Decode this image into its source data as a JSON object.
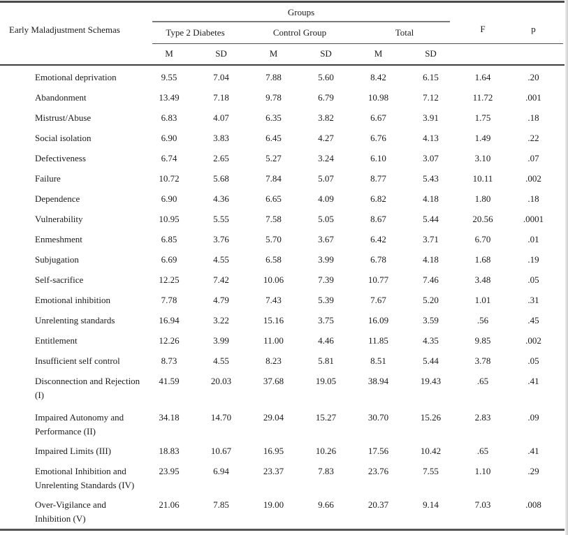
{
  "table": {
    "row_header": "Early Maladjustment Schemas",
    "group_header": "Groups",
    "group_columns": [
      "Type 2 Diabetes",
      "Control Group",
      "Total"
    ],
    "stat_headers": [
      "M",
      "SD",
      "M",
      "SD",
      "M",
      "SD"
    ],
    "f_label": "F",
    "p_label": "p",
    "rows": [
      {
        "name": "Emotional deprivation",
        "values": [
          "9.55",
          "7.04",
          "7.88",
          "5.60",
          "8.42",
          "6.15",
          "1.64",
          ".20"
        ]
      },
      {
        "name": "Abandonment",
        "values": [
          "13.49",
          "7.18",
          "9.78",
          "6.79",
          "10.98",
          "7.12",
          "11.72",
          ".001"
        ]
      },
      {
        "name": "Mistrust/Abuse",
        "values": [
          "6.83",
          "4.07",
          "6.35",
          "3.82",
          "6.67",
          "3.91",
          "1.75",
          ".18"
        ]
      },
      {
        "name": "Social isolation",
        "values": [
          "6.90",
          "3.83",
          "6.45",
          "4.27",
          "6.76",
          "4.13",
          "1.49",
          ".22"
        ]
      },
      {
        "name": "Defectiveness",
        "values": [
          "6.74",
          "2.65",
          "5.27",
          "3.24",
          "6.10",
          "3.07",
          "3.10",
          ".07"
        ]
      },
      {
        "name": "Failure",
        "values": [
          "10.72",
          "5.68",
          "7.84",
          "5.07",
          "8.77",
          "5.43",
          "10.11",
          ".002"
        ]
      },
      {
        "name": "Dependence",
        "values": [
          "6.90",
          "4.36",
          "6.65",
          "4.09",
          "6.82",
          "4.18",
          "1.80",
          ".18"
        ]
      },
      {
        "name": "Vulnerability",
        "values": [
          "10.95",
          "5.55",
          "7.58",
          "5.05",
          "8.67",
          "5.44",
          "20.56",
          ".0001"
        ]
      },
      {
        "name": "Enmeshment",
        "values": [
          "6.85",
          "3.76",
          "5.70",
          "3.67",
          "6.42",
          "3.71",
          "6.70",
          ".01"
        ]
      },
      {
        "name": "Subjugation",
        "values": [
          "6.69",
          "4.55",
          "6.58",
          "3.99",
          "6.78",
          "4.18",
          "1.68",
          ".19"
        ]
      },
      {
        "name": "Self-sacrifice",
        "values": [
          "12.25",
          "7.42",
          "10.06",
          "7.39",
          "10.77",
          "7.46",
          "3.48",
          ".05"
        ]
      },
      {
        "name": "Emotional inhibition",
        "values": [
          "7.78",
          "4.79",
          "7.43",
          "5.39",
          "7.67",
          "5.20",
          "1.01",
          ".31"
        ]
      },
      {
        "name": "Unrelenting standards",
        "values": [
          "16.94",
          "3.22",
          "15.16",
          "3.75",
          "16.09",
          "3.59",
          ".56",
          ".45"
        ]
      },
      {
        "name": "Entitlement",
        "values": [
          "12.26",
          "3.99",
          "11.00",
          "4.46",
          "11.85",
          "4.35",
          "9.85",
          ".002"
        ]
      },
      {
        "name": "Insufficient self control",
        "values": [
          "8.73",
          "4.55",
          "8.23",
          "5.81",
          "8.51",
          "5.44",
          "3.78",
          ".05"
        ]
      },
      {
        "name": "Disconnection and Rejection\n(I)",
        "values": [
          "41.59",
          "20.03",
          "37.68",
          "19.05",
          "38.94",
          "19.43",
          ".65",
          ".41"
        ]
      },
      {
        "name": "Impaired Autonomy and\nPerformance (II)",
        "values": [
          "34.18",
          "14.70",
          "29.04",
          "15.27",
          "30.70",
          "15.26",
          "2.83",
          ".09"
        ]
      },
      {
        "name": "Impaired Limits (III)",
        "values": [
          "18.83",
          "10.67",
          "16.95",
          "10.26",
          "17.56",
          "10.42",
          ".65",
          ".41"
        ]
      },
      {
        "name": "Emotional Inhibition and\nUnrelenting Standards (IV)",
        "values": [
          "23.95",
          "6.94",
          "23.37",
          "7.83",
          "23.76",
          "7.55",
          "1.10",
          ".29"
        ]
      },
      {
        "name": "Over-Vigilance and\nInhibition (V)",
        "values": [
          "21.06",
          "7.85",
          "19.00",
          "9.66",
          "20.37",
          "9.14",
          "7.03",
          ".008"
        ]
      }
    ]
  },
  "colors": {
    "background": "#ffffff",
    "text": "#1b1b1b",
    "rule_heavy": "#4a4a4a",
    "rule_light": "#7a7a7a"
  }
}
